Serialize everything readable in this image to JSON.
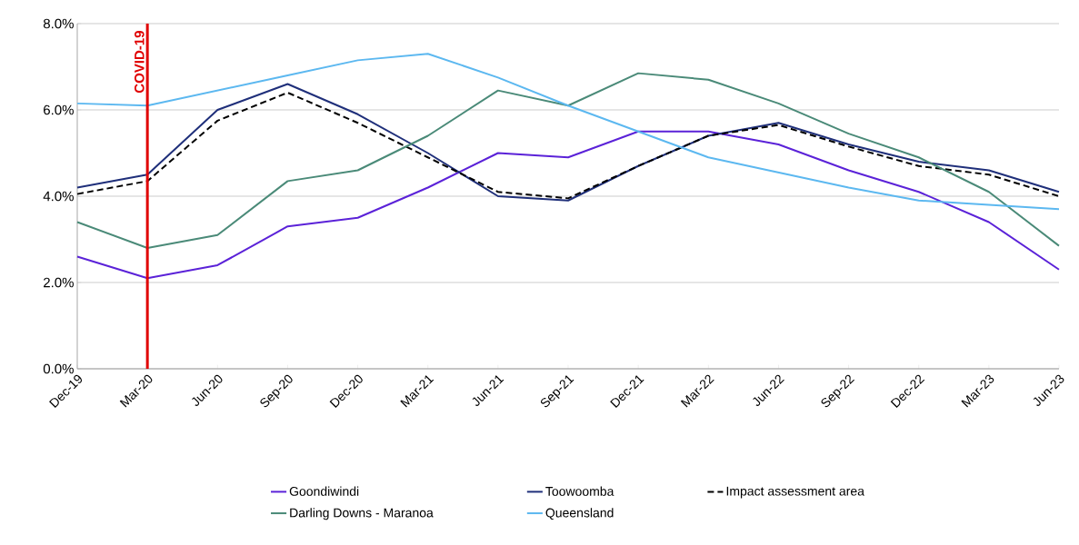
{
  "chart_data": {
    "type": "line",
    "categories": [
      "Dec-19",
      "Mar-20",
      "Jun-20",
      "Sep-20",
      "Dec-20",
      "Mar-21",
      "Jun-21",
      "Sep-21",
      "Dec-21",
      "Mar-22",
      "Jun-22",
      "Sep-22",
      "Dec-22",
      "Mar-23",
      "Jun-23"
    ],
    "series": [
      {
        "name": "Goondiwindi",
        "color": "#5b22d8",
        "values": [
          2.6,
          2.1,
          2.4,
          3.3,
          3.5,
          4.2,
          5.0,
          4.9,
          5.5,
          5.5,
          5.2,
          4.6,
          4.1,
          3.4,
          2.3
        ]
      },
      {
        "name": "Toowoomba",
        "color": "#1f2f7a",
        "values": [
          4.2,
          4.5,
          6.0,
          6.6,
          5.9,
          5.0,
          4.0,
          3.9,
          4.7,
          5.4,
          5.7,
          5.2,
          4.8,
          4.6,
          4.1
        ]
      },
      {
        "name": "Impact assessment area",
        "color": "#000000",
        "line_style": "dashed",
        "values": [
          4.05,
          4.35,
          5.75,
          6.4,
          5.7,
          4.9,
          4.1,
          3.95,
          4.7,
          5.4,
          5.65,
          5.15,
          4.7,
          4.5,
          4.0
        ]
      },
      {
        "name": "Darling Downs - Maranoa",
        "color": "#4a8a78",
        "values": [
          3.4,
          2.8,
          3.1,
          4.35,
          4.6,
          5.4,
          6.45,
          6.1,
          6.85,
          6.7,
          6.15,
          5.45,
          4.9,
          4.1,
          2.85
        ]
      },
      {
        "name": "Queensland",
        "color": "#5cb8f0",
        "values": [
          6.15,
          6.1,
          6.45,
          6.8,
          7.15,
          7.3,
          6.75,
          6.1,
          5.5,
          4.9,
          4.55,
          4.2,
          3.9,
          3.8,
          3.7
        ]
      }
    ],
    "ylim": [
      0,
      8
    ],
    "yticks": [
      {
        "value": 0,
        "label": "0.0%"
      },
      {
        "value": 2,
        "label": "2.0%"
      },
      {
        "value": 4,
        "label": "4.0%"
      },
      {
        "value": 6,
        "label": "6.0%"
      },
      {
        "value": 8,
        "label": "8.0%"
      }
    ],
    "grid": "y",
    "legend": "bottom",
    "line_style": "solid",
    "ref_lines": [
      {
        "axis": "x",
        "value": "Mar-20",
        "label": "COVID-19",
        "color": "#e00000"
      }
    ]
  }
}
